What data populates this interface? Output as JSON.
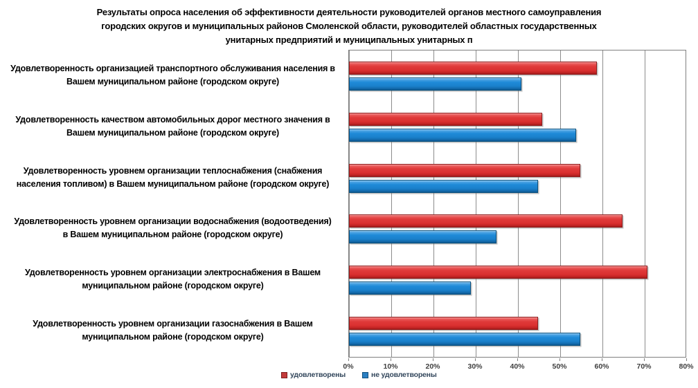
{
  "title": "Результаты опроса населения об эффективности деятельности руководителей органов местного самоуправления\nгородских округов и муниципальных районов Смоленской области, руководителей областных государственных\nунитарных предприятий и муниципальных унитарных п",
  "chart_data": {
    "type": "bar",
    "orientation": "horizontal",
    "title": "Результаты опроса населения об эффективности деятельности руководителей органов местного самоуправления городских округов и муниципальных районов Смоленской области, руководителей областных государственных унитарных предприятий и муниципальных унитарных п",
    "categories": [
      "Удовлетворенность организацией транспортного обслуживания населения в\nВашем муниципальном районе (городском округе)",
      "Удовлетворенность качеством автомобильных дорог местного значения в\nВашем муниципальном районе (городском округе)",
      "Удовлетворенность уровнем организации теплоснабжения (снабжения\nнаселения топливом) в Вашем муниципальном районе (городском округе)",
      "Удовлетворенность уровнем организации водоснабжения (водоотведения)\nв Вашем муниципальном районе (городском округе)",
      "Удовлетворенность уровнем организации электроснабжения в Вашем\nмуниципальном районе (городском округе)",
      "Удовлетворенность уровнем организации газоснабжения в Вашем\nмуниципальном районе (городском округе)"
    ],
    "series": [
      {
        "name": "удовлетворены",
        "color": "#DE3A3A",
        "values": [
          59,
          46,
          55,
          65,
          71,
          45
        ]
      },
      {
        "name": "не удовлетворены",
        "color": "#1C86D1",
        "values": [
          41,
          54,
          45,
          35,
          29,
          55
        ]
      }
    ],
    "x_ticks": [
      "0%",
      "10%",
      "20%",
      "30%",
      "40%",
      "50%",
      "60%",
      "70%",
      "80%"
    ],
    "xlim": [
      0,
      80
    ],
    "grid": "vertical",
    "legend_position": "bottom",
    "colors": {
      "satisfied": "#DE3A3A",
      "not_satisfied": "#1C86D1",
      "gridline": "#8c8c8c",
      "plot_border": "#7f7f7f"
    }
  }
}
